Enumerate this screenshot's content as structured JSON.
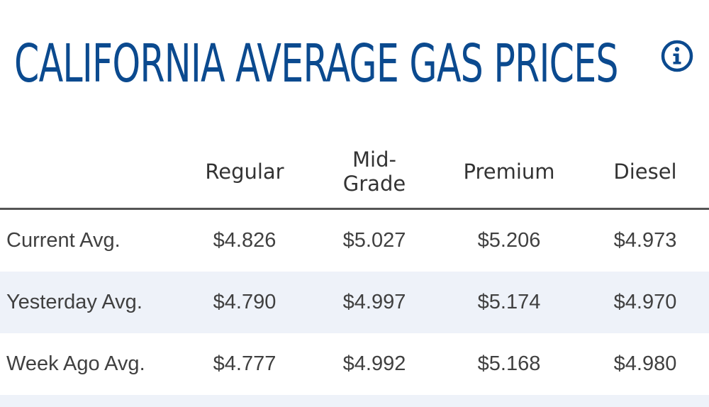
{
  "title": "CALIFORNIA AVERAGE GAS PRICES",
  "info_icon": "info-circle-icon",
  "accent_color": "#0b4a8f",
  "columns": {
    "regular": "Regular",
    "midgrade_line1": "Mid-",
    "midgrade_line2": "Grade",
    "premium": "Premium",
    "diesel": "Diesel"
  },
  "rows": [
    {
      "label": "Current Avg.",
      "regular": "$4.826",
      "midgrade": "$5.027",
      "premium": "$5.206",
      "diesel": "$4.973"
    },
    {
      "label": "Yesterday Avg.",
      "regular": "$4.790",
      "midgrade": "$4.997",
      "premium": "$5.174",
      "diesel": "$4.970"
    },
    {
      "label": "Week Ago Avg.",
      "regular": "$4.777",
      "midgrade": "$4.992",
      "premium": "$5.168",
      "diesel": "$4.980"
    }
  ]
}
